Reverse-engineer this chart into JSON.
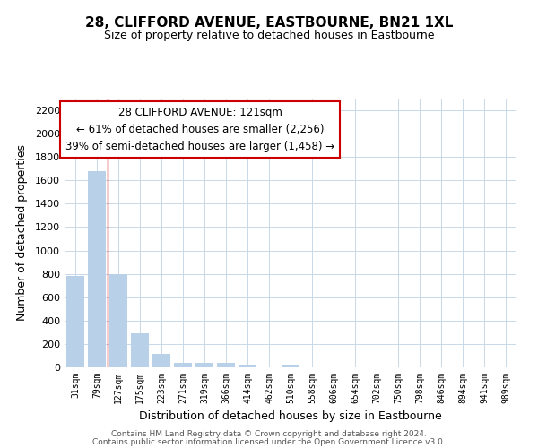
{
  "title": "28, CLIFFORD AVENUE, EASTBOURNE, BN21 1XL",
  "subtitle": "Size of property relative to detached houses in Eastbourne",
  "xlabel": "Distribution of detached houses by size in Eastbourne",
  "ylabel": "Number of detached properties",
  "categories": [
    "31sqm",
    "79sqm",
    "127sqm",
    "175sqm",
    "223sqm",
    "271sqm",
    "319sqm",
    "366sqm",
    "414sqm",
    "462sqm",
    "510sqm",
    "558sqm",
    "606sqm",
    "654sqm",
    "702sqm",
    "750sqm",
    "798sqm",
    "846sqm",
    "894sqm",
    "941sqm",
    "989sqm"
  ],
  "values": [
    780,
    1680,
    800,
    295,
    115,
    40,
    35,
    35,
    20,
    0,
    20,
    0,
    0,
    0,
    0,
    0,
    0,
    0,
    0,
    0,
    0
  ],
  "bar_color": "#b8d0e8",
  "vline_color": "#cc0000",
  "ylim": [
    0,
    2300
  ],
  "yticks": [
    0,
    200,
    400,
    600,
    800,
    1000,
    1200,
    1400,
    1600,
    1800,
    2000,
    2200
  ],
  "annotation_title": "28 CLIFFORD AVENUE: 121sqm",
  "annotation_line1": "← 61% of detached houses are smaller (2,256)",
  "annotation_line2": "39% of semi-detached houses are larger (1,458) →",
  "annotation_box_color": "#ffffff",
  "annotation_box_edge": "#cc0000",
  "footer1": "Contains HM Land Registry data © Crown copyright and database right 2024.",
  "footer2": "Contains public sector information licensed under the Open Government Licence v3.0.",
  "background_color": "#ffffff",
  "grid_color": "#c8d8e8"
}
